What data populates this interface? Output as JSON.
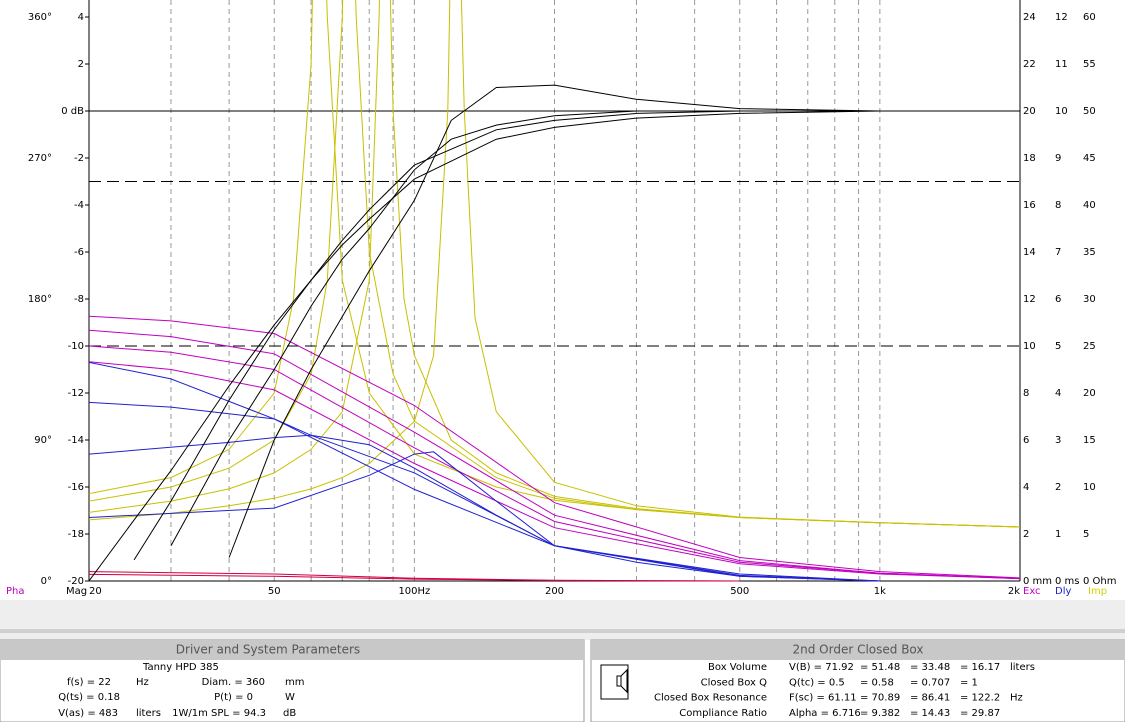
{
  "chart_data": {
    "type": "line",
    "xscale": "log",
    "xlim": [
      20,
      2000
    ],
    "xticks": [
      20,
      50,
      {
        "value": 100,
        "label": "100Hz"
      },
      200,
      500,
      {
        "value": 1000,
        "label": "1k"
      },
      {
        "value": 2000,
        "label": "2k"
      }
    ],
    "xminor": [
      30,
      40,
      60,
      70,
      80,
      90,
      300,
      400,
      600,
      700,
      800,
      900
    ],
    "ylim": [
      -20,
      4
    ],
    "yticks": [
      -20,
      -18,
      -16,
      -14,
      -12,
      -10,
      -8,
      -6,
      -4,
      -2,
      {
        "value": 0,
        "label": "0 dB"
      },
      2,
      4
    ],
    "phaselim": [
      0,
      360
    ],
    "phaseticks": [
      {
        "value": 0,
        "label": "0°"
      },
      {
        "value": 90,
        "label": "90°"
      },
      {
        "value": 180,
        "label": "180°"
      },
      {
        "value": 270,
        "label": "270°"
      },
      {
        "value": 360,
        "label": "360°"
      }
    ],
    "mmlim": [
      0,
      24
    ],
    "mmticks": [
      {
        "value": 0,
        "label": "0 mm"
      },
      2,
      4,
      6,
      8,
      10,
      12,
      14,
      16,
      18,
      20,
      22,
      24
    ],
    "mslim": [
      0,
      12
    ],
    "msticks": [
      {
        "value": 0,
        "label": "0 ms"
      },
      1,
      2,
      3,
      4,
      5,
      6,
      7,
      8,
      9,
      10,
      11,
      12
    ],
    "ohmlim": [
      0,
      60
    ],
    "ohmticks": [
      {
        "value": 0,
        "label": "0 Ohm"
      },
      5,
      10,
      15,
      20,
      25,
      30,
      35,
      40,
      45,
      50,
      55,
      60
    ],
    "axis_names": {
      "phase": {
        "label": "Pha",
        "color": "#c000c0"
      },
      "y": {
        "label": "Mag",
        "color": "#000000"
      },
      "mm": {
        "label": "Exc",
        "color": "#c000c0"
      },
      "ms": {
        "label": "Dly",
        "color": "#2020d0"
      },
      "ohm": {
        "label": "Imp",
        "color": "#d8d000"
      }
    },
    "hlines": [
      {
        "value": 0,
        "dash": false
      },
      {
        "value": -3,
        "dash": true
      },
      {
        "value": -10,
        "dash": true
      }
    ],
    "series": [
      {
        "axis": "ohm",
        "color": "#c8c000",
        "x": [
          20,
          30,
          40,
          50,
          55,
          60,
          62,
          65,
          70,
          80,
          100,
          150,
          200,
          300,
          500,
          1000,
          2000
        ],
        "values": [
          9.3,
          11,
          14,
          20,
          30,
          55,
          90,
          60,
          32,
          20,
          13.5,
          10,
          8.6,
          7.6,
          6.75,
          6.2,
          5.75
        ]
      },
      {
        "axis": "ohm",
        "color": "#c8c000",
        "x": [
          20,
          30,
          40,
          50,
          60,
          65,
          70,
          72,
          75,
          80,
          90,
          100,
          150,
          200,
          300,
          500,
          1000,
          2000
        ],
        "values": [
          8.5,
          10,
          12,
          15,
          22,
          32,
          60,
          90,
          60,
          35,
          22,
          17,
          11,
          8.8,
          7.6,
          6.75,
          6.2,
          5.75
        ]
      },
      {
        "axis": "ohm",
        "color": "#c8c000",
        "x": [
          20,
          30,
          40,
          50,
          60,
          70,
          80,
          84,
          86,
          90,
          95,
          100,
          120,
          150,
          200,
          300,
          500,
          1000,
          2000
        ],
        "values": [
          7.3,
          8.5,
          9.8,
          11.5,
          14,
          18,
          32,
          60,
          90,
          50,
          30,
          24,
          15,
          11.5,
          9,
          7.7,
          6.75,
          6.2,
          5.75
        ]
      },
      {
        "axis": "ohm",
        "color": "#c8c000",
        "x": [
          20,
          30,
          40,
          50,
          60,
          70,
          80,
          100,
          110,
          118,
          122,
          128,
          135,
          150,
          200,
          300,
          500,
          1000,
          2000
        ],
        "values": [
          6.5,
          7.2,
          8,
          8.8,
          9.8,
          11,
          12.5,
          17,
          24,
          50,
          90,
          50,
          28,
          18,
          10.5,
          8,
          6.8,
          6.2,
          5.75
        ]
      },
      {
        "axis": "phase",
        "color": "#c000c0",
        "x": [
          20,
          30,
          50,
          100,
          200,
          500,
          1000,
          2000
        ],
        "values": [
          169,
          166,
          158,
          112,
          50,
          15,
          6,
          2
        ]
      },
      {
        "axis": "phase",
        "color": "#c000c0",
        "x": [
          20,
          30,
          50,
          100,
          200,
          500,
          1000,
          2000
        ],
        "values": [
          160,
          156,
          145,
          95,
          42,
          13,
          5,
          1.5
        ]
      },
      {
        "axis": "phase",
        "color": "#c000c0",
        "x": [
          20,
          30,
          50,
          100,
          200,
          500,
          1000,
          2000
        ],
        "values": [
          150,
          146,
          135,
          85,
          38,
          12,
          5,
          1.5
        ]
      },
      {
        "axis": "phase",
        "color": "#c000c0",
        "x": [
          20,
          30,
          50,
          100,
          200,
          500,
          1000,
          2000
        ],
        "values": [
          140,
          135,
          122,
          75,
          34,
          11,
          4.5,
          1.5
        ]
      },
      {
        "axis": "mm",
        "color": "#d00040",
        "x": [
          20,
          50,
          100,
          200,
          500
        ],
        "values": [
          0.4,
          0.3,
          0.12,
          0.03,
          0
        ]
      },
      {
        "axis": "mm",
        "color": "#d00040",
        "x": [
          20,
          50,
          100,
          200,
          500
        ],
        "values": [
          0.28,
          0.2,
          0.08,
          0.02,
          0
        ]
      },
      {
        "axis": "ms",
        "color": "#2020d0",
        "x": [
          20,
          30,
          50,
          100,
          200,
          500,
          1000
        ],
        "values": [
          4.65,
          4.3,
          3.45,
          1.95,
          0.75,
          0.15,
          0
        ]
      },
      {
        "axis": "ms",
        "color": "#2020d0",
        "x": [
          20,
          30,
          50,
          60,
          100,
          200,
          500,
          1000
        ],
        "values": [
          3.8,
          3.7,
          3.45,
          3.1,
          2.3,
          0.75,
          0.12,
          0
        ]
      },
      {
        "axis": "ms",
        "color": "#2020d0",
        "x": [
          20,
          40,
          50,
          60,
          80,
          100,
          150,
          200,
          500,
          1000
        ],
        "values": [
          2.7,
          2.95,
          3.05,
          3.1,
          2.9,
          2.4,
          1.4,
          0.75,
          0.1,
          0
        ]
      },
      {
        "axis": "ms",
        "color": "#2020d0",
        "x": [
          20,
          50,
          80,
          100,
          110,
          150,
          200,
          300,
          500,
          1000
        ],
        "values": [
          1.35,
          1.55,
          2.25,
          2.7,
          2.75,
          1.7,
          0.75,
          0.4,
          0.1,
          0
        ]
      },
      {
        "axis": "y",
        "color": "#000000",
        "x": [
          40,
          50,
          60,
          80,
          100,
          120,
          150,
          200,
          300,
          500,
          1000,
          2000
        ],
        "values": [
          -19,
          -14,
          -11,
          -6.8,
          -3.8,
          -0.4,
          1,
          1.1,
          0.5,
          0.1,
          0,
          0
        ]
      },
      {
        "axis": "y",
        "color": "#000000",
        "x": [
          30,
          40,
          50,
          60,
          70,
          80,
          100,
          120,
          150,
          200,
          300,
          2000
        ],
        "values": [
          -18.5,
          -14,
          -11,
          -8.3,
          -6.3,
          -5,
          -2.5,
          -1.2,
          -0.6,
          -0.2,
          0,
          0
        ]
      },
      {
        "axis": "y",
        "color": "#000000",
        "x": [
          25,
          30,
          40,
          50,
          60,
          70,
          80,
          100,
          150,
          200,
          300,
          500,
          2000
        ],
        "values": [
          -19.1,
          -16.6,
          -12.3,
          -9.3,
          -7.2,
          -5.5,
          -4.2,
          -2.3,
          -0.8,
          -0.4,
          -0.1,
          0,
          0
        ]
      },
      {
        "axis": "y",
        "color": "#000000",
        "x": [
          20,
          25,
          30,
          40,
          50,
          60,
          70,
          80,
          100,
          150,
          200,
          300,
          500,
          1000,
          2000
        ],
        "values": [
          -20,
          -17.4,
          -15.3,
          -11.7,
          -9.1,
          -7.2,
          -5.7,
          -4.6,
          -2.9,
          -1.2,
          -0.7,
          -0.3,
          -0.1,
          0,
          0
        ]
      }
    ]
  },
  "driver_panel": {
    "title": "Driver and System Parameters",
    "model": "Tanny HPD 385",
    "fs": "f(s) = 22",
    "fs_unit": "Hz",
    "diam": "Diam. = 360",
    "diam_unit": "mm",
    "qts": "Q(ts) = 0.18",
    "pt": "P(t) = 0",
    "pt_unit": "W",
    "vas": "V(as) = 483",
    "vas_unit": "liters",
    "spl": "1W/1m SPL = 94.3",
    "spl_unit": "dB"
  },
  "box_panel": {
    "title": "2nd Order Closed Box",
    "rows": [
      [
        "Box Volume",
        "V(B) = 71.92",
        "= 51.48",
        "= 33.48",
        "= 16.17",
        "liters"
      ],
      [
        "Closed Box Q",
        "Q(tc) = 0.5",
        "= 0.58",
        "= 0.707",
        "= 1"
      ],
      [
        "Closed Box Resonance",
        "F(sc) = 61.11",
        "= 70.89",
        "= 86.41",
        "= 122.2",
        "Hz"
      ],
      [
        "Compliance Ratio",
        "Alpha = 6.716",
        "= 9.382",
        "= 14.43",
        "= 29.87"
      ]
    ]
  }
}
